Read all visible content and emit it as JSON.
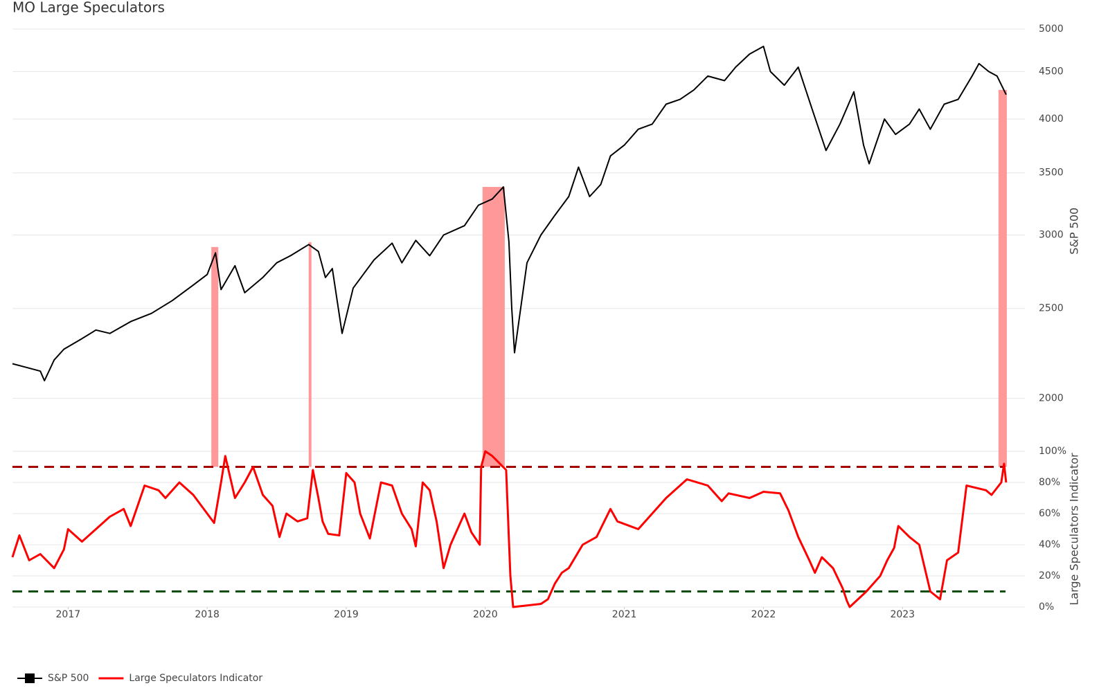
{
  "chart_data": [
    {
      "type": "line",
      "title": "MO Large Speculators",
      "y_label": "S&P 500",
      "log_scale": true,
      "grid": true,
      "xlim": [
        2016.6,
        2023.88
      ],
      "ylim": [
        1800,
        5100
      ],
      "yticks": [
        2000,
        2500,
        3000,
        3500,
        4000,
        4500,
        5000
      ],
      "series": [
        {
          "name": "S&P 500",
          "color": "#000000",
          "x": [
            2016.6,
            2016.7,
            2016.8,
            2016.83,
            2016.9,
            2016.97,
            2017.1,
            2017.2,
            2017.3,
            2017.45,
            2017.6,
            2017.75,
            2017.9,
            2018.0,
            2018.06,
            2018.1,
            2018.2,
            2018.27,
            2018.4,
            2018.5,
            2018.6,
            2018.73,
            2018.8,
            2018.85,
            2018.9,
            2018.97,
            2019.05,
            2019.2,
            2019.33,
            2019.4,
            2019.5,
            2019.6,
            2019.7,
            2019.85,
            2019.95,
            2020.05,
            2020.13,
            2020.17,
            2020.19,
            2020.21,
            2020.3,
            2020.4,
            2020.5,
            2020.6,
            2020.67,
            2020.75,
            2020.83,
            2020.9,
            2021.0,
            2021.1,
            2021.2,
            2021.3,
            2021.4,
            2021.5,
            2021.6,
            2021.72,
            2021.8,
            2021.9,
            2022.0,
            2022.05,
            2022.15,
            2022.25,
            2022.35,
            2022.45,
            2022.55,
            2022.65,
            2022.72,
            2022.76,
            2022.87,
            2022.95,
            2023.05,
            2023.12,
            2023.2,
            2023.3,
            2023.4,
            2023.5,
            2023.55,
            2023.62,
            2023.68,
            2023.745
          ],
          "values": [
            2180,
            2160,
            2140,
            2090,
            2200,
            2260,
            2320,
            2370,
            2350,
            2420,
            2470,
            2550,
            2650,
            2720,
            2870,
            2620,
            2780,
            2600,
            2700,
            2800,
            2850,
            2930,
            2880,
            2700,
            2760,
            2350,
            2630,
            2820,
            2940,
            2800,
            2960,
            2850,
            3000,
            3070,
            3230,
            3280,
            3380,
            2950,
            2500,
            2240,
            2800,
            3000,
            3150,
            3300,
            3550,
            3300,
            3400,
            3650,
            3750,
            3900,
            3950,
            4150,
            4200,
            4300,
            4450,
            4400,
            4550,
            4700,
            4790,
            4500,
            4350,
            4550,
            4100,
            3700,
            3950,
            4280,
            3750,
            3580,
            4000,
            3850,
            3950,
            4100,
            3900,
            4150,
            4200,
            4450,
            4590,
            4500,
            4450,
            4250
          ]
        }
      ],
      "highlights": {
        "color": "#ff9999",
        "ranges": [
          [
            2018.03,
            2018.08,
            2912
          ],
          [
            2018.73,
            2018.75,
            2947
          ],
          [
            2019.98,
            2020.14,
            3380
          ],
          [
            2023.69,
            2023.75,
            4300
          ]
        ]
      }
    },
    {
      "type": "line",
      "y_label": "Large Speculators Indicator",
      "grid": true,
      "xlim": [
        2016.6,
        2023.88
      ],
      "xticks": [
        2017,
        2018,
        2019,
        2020,
        2021,
        2022,
        2023
      ],
      "ylim": [
        0,
        100
      ],
      "yticks": [
        {
          "value": 0,
          "label": "0%"
        },
        {
          "value": 20,
          "label": "20%"
        },
        {
          "value": 40,
          "label": "40%"
        },
        {
          "value": 60,
          "label": "60%"
        },
        {
          "value": 80,
          "label": "80%"
        },
        {
          "value": 100,
          "label": "100%"
        }
      ],
      "thresholds": [
        {
          "value": 90,
          "color": "#a50000"
        },
        {
          "value": 10,
          "color": "#0b4d0b"
        }
      ],
      "series": [
        {
          "name": "Large Speculators Indicator",
          "color": "#ff0000",
          "x": [
            2016.6,
            2016.65,
            2016.72,
            2016.8,
            2016.9,
            2016.97,
            2017.0,
            2017.1,
            2017.2,
            2017.3,
            2017.4,
            2017.45,
            2017.55,
            2017.65,
            2017.7,
            2017.8,
            2017.9,
            2018.0,
            2018.05,
            2018.1,
            2018.13,
            2018.2,
            2018.27,
            2018.33,
            2018.4,
            2018.47,
            2018.52,
            2018.57,
            2018.65,
            2018.72,
            2018.76,
            2018.8,
            2018.83,
            2018.87,
            2018.95,
            2019.0,
            2019.06,
            2019.1,
            2019.17,
            2019.25,
            2019.33,
            2019.4,
            2019.47,
            2019.5,
            2019.55,
            2019.6,
            2019.65,
            2019.7,
            2019.75,
            2019.8,
            2019.85,
            2019.9,
            2019.96,
            2019.97,
            2020.0,
            2020.05,
            2020.15,
            2020.18,
            2020.2,
            2020.4,
            2020.45,
            2020.5,
            2020.55,
            2020.6,
            2020.7,
            2020.8,
            2020.9,
            2020.95,
            2021.1,
            2021.2,
            2021.3,
            2021.45,
            2021.6,
            2021.7,
            2021.75,
            2021.9,
            2022.0,
            2022.12,
            2022.18,
            2022.25,
            2022.33,
            2022.37,
            2022.42,
            2022.5,
            2022.57,
            2022.6,
            2022.62,
            2022.74,
            2022.84,
            2022.89,
            2022.94,
            2022.97,
            2023.05,
            2023.12,
            2023.2,
            2023.27,
            2023.32,
            2023.4,
            2023.46,
            2023.6,
            2023.64,
            2023.71,
            2023.73,
            2023.745
          ],
          "values": [
            32,
            46,
            30,
            34,
            25,
            37,
            50,
            42,
            50,
            58,
            63,
            52,
            78,
            75,
            70,
            80,
            72,
            60,
            54,
            80,
            97,
            70,
            80,
            90,
            72,
            65,
            45,
            60,
            55,
            57,
            88,
            70,
            55,
            47,
            46,
            86,
            80,
            60,
            44,
            80,
            78,
            60,
            50,
            39,
            80,
            75,
            55,
            25,
            40,
            50,
            60,
            48,
            40,
            90,
            100,
            97,
            88,
            20,
            0,
            2,
            5,
            15,
            22,
            25,
            40,
            45,
            63,
            55,
            50,
            60,
            70,
            82,
            78,
            68,
            73,
            70,
            74,
            73,
            62,
            45,
            30,
            22,
            32,
            25,
            12,
            4,
            0,
            10,
            20,
            30,
            38,
            52,
            45,
            40,
            10,
            5,
            30,
            35,
            78,
            75,
            72,
            80,
            92,
            80
          ]
        }
      ]
    }
  ]
}
